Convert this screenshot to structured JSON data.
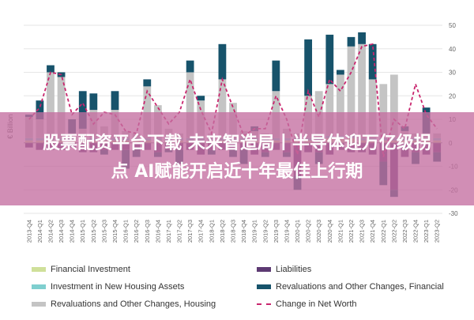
{
  "banner": {
    "line1": "股票配资平台下载 未来智造局丨半导体迎万亿级拐",
    "line2": "点 AI赋能开启近十年最佳上行期"
  },
  "chart_data": {
    "type": "bar",
    "ylabel": "€ Billion",
    "ylim": [
      -30,
      50
    ],
    "yticks": [
      50,
      40,
      30,
      20,
      10,
      0,
      -10,
      -20,
      -30
    ],
    "categories": [
      "2013-Q4",
      "2014-Q1",
      "2014-Q2",
      "2014-Q3",
      "2014-Q4",
      "2015-Q1",
      "2015-Q2",
      "2015-Q3",
      "2015-Q4",
      "2016-Q1",
      "2016-Q2",
      "2016-Q3",
      "2016-Q4",
      "2017-Q1",
      "2017-Q2",
      "2017-Q3",
      "2017-Q4",
      "2018-Q1",
      "2018-Q2",
      "2018-Q3",
      "2018-Q4",
      "2019-Q1",
      "2019-Q2",
      "2019-Q3",
      "2019-Q4",
      "2020-Q1",
      "2020-Q2",
      "2020-Q3",
      "2020-Q4",
      "2021-Q1",
      "2021-Q2",
      "2021-Q3",
      "2021-Q4",
      "2022-Q1",
      "2022-Q2",
      "2022-Q3",
      "2022-Q4",
      "2023-Q1",
      "2023-Q2"
    ],
    "series": [
      {
        "name": "Financial Investment",
        "color": "#cfe09a",
        "values": [
          1,
          1,
          1,
          1,
          1,
          1,
          1,
          1,
          1,
          1,
          1,
          1,
          1,
          1,
          1,
          1,
          1,
          1,
          1,
          1,
          1,
          1,
          1,
          1,
          1,
          1,
          1,
          1,
          2,
          2,
          2,
          1,
          1,
          1,
          1,
          1,
          1,
          1,
          1
        ]
      },
      {
        "name": "Investment in New Housing Assets",
        "color": "#7fcfcf",
        "values": [
          1,
          1,
          1,
          1,
          1,
          1,
          1,
          1,
          1,
          1,
          1,
          1,
          1,
          1,
          1,
          1,
          1,
          1,
          1,
          1,
          1,
          1,
          1,
          1,
          1,
          1,
          1,
          1,
          1,
          1,
          1,
          1,
          1,
          1,
          1,
          1,
          1,
          1,
          1
        ]
      },
      {
        "name": "Revaluations and Other Changes, Housing",
        "color": "#c4c4c4",
        "values": [
          9,
          8,
          28,
          26,
          2,
          4,
          12,
          5,
          12,
          3,
          2,
          22,
          14,
          4,
          2,
          28,
          16,
          2,
          25,
          15,
          3,
          3,
          2,
          20,
          4,
          2,
          18,
          20,
          22,
          26,
          38,
          40,
          25,
          23,
          27,
          3,
          2,
          2,
          2
        ]
      },
      {
        "name": "Liabilities",
        "color": "#5d3a73",
        "values": [
          -2,
          -3,
          -3,
          -3,
          -2,
          -4,
          -4,
          -3,
          -3,
          -3,
          -2,
          -3,
          -4,
          -3,
          -3,
          -3,
          -5,
          -3,
          -3,
          -3,
          -3,
          -5,
          -4,
          -3,
          -4,
          -14,
          -4,
          -4,
          -5,
          -3,
          -4,
          -4,
          -5,
          -8,
          -20,
          -6,
          -4,
          -5,
          -4
        ]
      },
      {
        "name": "Revaluations and Other Changes, Financial",
        "color": "#17536b",
        "values": [
          1,
          8,
          3,
          2,
          6,
          16,
          7,
          -2,
          8,
          -8,
          -4,
          3,
          -2,
          -1,
          -6,
          5,
          2,
          -2,
          15,
          -3,
          -6,
          2,
          -2,
          13,
          -2,
          -6,
          24,
          -5,
          21,
          2,
          4,
          5,
          15,
          -10,
          -3,
          2,
          -5,
          11,
          -4
        ]
      },
      {
        "name": "Change in Net Worth",
        "color": "#c9266e",
        "values": [
          10,
          15,
          30,
          29,
          12,
          17,
          8,
          13,
          12,
          5,
          4,
          22,
          15,
          8,
          13,
          27,
          14,
          4,
          27,
          15,
          3,
          6,
          6,
          20,
          10,
          -5,
          22,
          11,
          27,
          22,
          30,
          41,
          42,
          -6,
          10,
          6,
          25,
          12,
          6
        ]
      }
    ]
  }
}
